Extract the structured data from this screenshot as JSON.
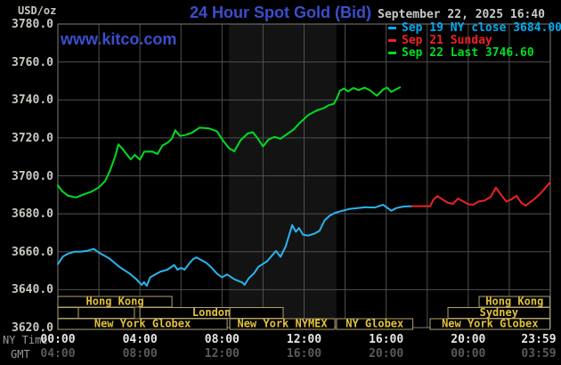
{
  "header": {
    "unit_label": "USD/oz",
    "title": "24 Hour Spot Gold (Bid)",
    "datetime": "September 22, 2025 16:40",
    "watermark": "www.kitco.com"
  },
  "legend": [
    {
      "label": "Sep 19 NY close 3684.00",
      "color": "#00aaee"
    },
    {
      "label": "Sep 21 Sunday",
      "color": "#ee2222"
    },
    {
      "label": "Sep 22 Last 3746.60",
      "color": "#00dd22"
    }
  ],
  "axes": {
    "x_ny_label": "NY Time",
    "x_gmt_label": "GMT",
    "x_ny_ticks": [
      "00:00",
      "04:00",
      "08:00",
      "12:00",
      "16:00",
      "20:00",
      "23:59"
    ],
    "x_gmt_ticks": [
      "04:00",
      "08:00",
      "12:00",
      "16:00",
      "20:00",
      "00:00",
      "03:59"
    ],
    "y_ticks": [
      "3780.0",
      "3760.0",
      "3740.0",
      "3720.0",
      "3700.0",
      "3680.0",
      "3660.0",
      "3640.0",
      "3620.0"
    ]
  },
  "chart_data": {
    "type": "line",
    "title": "24 Hour Spot Gold (Bid)",
    "y_unit": "USD/oz",
    "ylim": [
      3620,
      3780
    ],
    "y_grid_step": 20,
    "xlim_hours": [
      0,
      24
    ],
    "x_grid_step_hours": 2,
    "x_tick_hours": [
      0,
      4,
      8,
      12,
      16,
      20,
      24
    ],
    "grid": true,
    "legend_position": "top-right",
    "nymex_band_hours": [
      8.33,
      13.58
    ],
    "series": [
      {
        "name": "Sep 22 Last 3746.60",
        "color": "#00dd22",
        "points": [
          [
            0,
            3695
          ],
          [
            0.2,
            3692
          ],
          [
            0.5,
            3689.5
          ],
          [
            0.9,
            3688.6
          ],
          [
            1.2,
            3690
          ],
          [
            1.65,
            3691.7
          ],
          [
            2.0,
            3694
          ],
          [
            2.3,
            3697.2
          ],
          [
            2.55,
            3703
          ],
          [
            2.8,
            3710.5
          ],
          [
            2.95,
            3716.6
          ],
          [
            3.2,
            3713.5
          ],
          [
            3.55,
            3708.7
          ],
          [
            3.75,
            3711
          ],
          [
            4.0,
            3708.5
          ],
          [
            4.2,
            3712.7
          ],
          [
            4.6,
            3712.8
          ],
          [
            4.85,
            3711.5
          ],
          [
            5.1,
            3716
          ],
          [
            5.35,
            3717.5
          ],
          [
            5.55,
            3719.5
          ],
          [
            5.72,
            3724
          ],
          [
            5.95,
            3721
          ],
          [
            6.2,
            3721.5
          ],
          [
            6.5,
            3722.5
          ],
          [
            6.9,
            3725.4
          ],
          [
            7.35,
            3725
          ],
          [
            7.75,
            3723.5
          ],
          [
            8.05,
            3718.5
          ],
          [
            8.35,
            3714.5
          ],
          [
            8.6,
            3712.9
          ],
          [
            8.9,
            3718.7
          ],
          [
            9.25,
            3722.3
          ],
          [
            9.5,
            3723
          ],
          [
            9.75,
            3719.5
          ],
          [
            10.0,
            3715.5
          ],
          [
            10.25,
            3719
          ],
          [
            10.55,
            3720.5
          ],
          [
            10.85,
            3719.5
          ],
          [
            11.1,
            3721.5
          ],
          [
            11.5,
            3724.5
          ],
          [
            11.75,
            3727.5
          ],
          [
            12.0,
            3730
          ],
          [
            12.2,
            3732
          ],
          [
            12.45,
            3733.5
          ],
          [
            12.7,
            3734.8
          ],
          [
            12.95,
            3735.6
          ],
          [
            13.2,
            3737.2
          ],
          [
            13.45,
            3737.9
          ],
          [
            13.6,
            3741
          ],
          [
            13.75,
            3744.9
          ],
          [
            13.95,
            3746
          ],
          [
            14.15,
            3744.5
          ],
          [
            14.4,
            3746.3
          ],
          [
            14.65,
            3745.2
          ],
          [
            14.95,
            3746.5
          ],
          [
            15.25,
            3744.8
          ],
          [
            15.55,
            3742.2
          ],
          [
            15.85,
            3745.5
          ],
          [
            16.05,
            3746.5
          ],
          [
            16.25,
            3744.2
          ],
          [
            16.5,
            3745.7
          ],
          [
            16.67,
            3746.6
          ]
        ]
      },
      {
        "name": "Sep 19 NY close 3684.00",
        "color": "#2ab4ee",
        "points": [
          [
            0,
            3653.5
          ],
          [
            0.25,
            3657.5
          ],
          [
            0.5,
            3659
          ],
          [
            0.8,
            3660
          ],
          [
            1.1,
            3660
          ],
          [
            1.45,
            3660.5
          ],
          [
            1.75,
            3661.5
          ],
          [
            2.0,
            3659.5
          ],
          [
            2.5,
            3656.5
          ],
          [
            3.0,
            3652
          ],
          [
            3.5,
            3648.5
          ],
          [
            3.83,
            3645.5
          ],
          [
            4.08,
            3642.5
          ],
          [
            4.2,
            3644
          ],
          [
            4.33,
            3642
          ],
          [
            4.5,
            3646.5
          ],
          [
            4.75,
            3648
          ],
          [
            5.0,
            3649.5
          ],
          [
            5.33,
            3650.5
          ],
          [
            5.67,
            3653
          ],
          [
            5.83,
            3650.5
          ],
          [
            6.0,
            3651.5
          ],
          [
            6.17,
            3650.5
          ],
          [
            6.42,
            3654
          ],
          [
            6.58,
            3656
          ],
          [
            6.75,
            3657
          ],
          [
            7.0,
            3655.5
          ],
          [
            7.25,
            3654
          ],
          [
            7.5,
            3651.5
          ],
          [
            7.75,
            3648.5
          ],
          [
            8.0,
            3646.5
          ],
          [
            8.25,
            3648
          ],
          [
            8.6,
            3645.5
          ],
          [
            9.0,
            3643.7
          ],
          [
            9.1,
            3642.5
          ],
          [
            9.3,
            3646
          ],
          [
            9.55,
            3648.5
          ],
          [
            9.77,
            3652
          ],
          [
            10.2,
            3655
          ],
          [
            10.63,
            3660.4
          ],
          [
            10.85,
            3657.3
          ],
          [
            11.1,
            3662.8
          ],
          [
            11.42,
            3674
          ],
          [
            11.6,
            3670.5
          ],
          [
            11.75,
            3672.5
          ],
          [
            11.95,
            3669
          ],
          [
            12.2,
            3668.5
          ],
          [
            12.5,
            3669.5
          ],
          [
            12.75,
            3671
          ],
          [
            13.0,
            3676.5
          ],
          [
            13.25,
            3679
          ],
          [
            13.5,
            3680.5
          ],
          [
            13.85,
            3681.5
          ],
          [
            14.2,
            3682.5
          ],
          [
            14.6,
            3683
          ],
          [
            15.0,
            3683.5
          ],
          [
            15.45,
            3683.3
          ],
          [
            15.85,
            3684.7
          ],
          [
            16.25,
            3681.6
          ],
          [
            16.5,
            3683
          ],
          [
            16.85,
            3683.8
          ],
          [
            17.27,
            3684
          ]
        ]
      },
      {
        "name": "Sep 21 Sunday",
        "color": "#ee2222",
        "points": [
          [
            17.27,
            3684
          ],
          [
            18.15,
            3684
          ],
          [
            18.3,
            3687.5
          ],
          [
            18.5,
            3689.3
          ],
          [
            18.75,
            3687.5
          ],
          [
            19.0,
            3685.9
          ],
          [
            19.25,
            3685.2
          ],
          [
            19.5,
            3688
          ],
          [
            19.75,
            3686.5
          ],
          [
            20.0,
            3685
          ],
          [
            20.25,
            3684.8
          ],
          [
            20.5,
            3686.5
          ],
          [
            20.8,
            3687
          ],
          [
            21.1,
            3689
          ],
          [
            21.35,
            3693.8
          ],
          [
            21.6,
            3690
          ],
          [
            21.85,
            3686.5
          ],
          [
            22.1,
            3687.5
          ],
          [
            22.35,
            3689.5
          ],
          [
            22.6,
            3685.6
          ],
          [
            22.8,
            3684.3
          ],
          [
            23.0,
            3686
          ],
          [
            23.25,
            3688
          ],
          [
            23.5,
            3690.5
          ],
          [
            23.75,
            3693.5
          ],
          [
            23.98,
            3696.5
          ]
        ]
      }
    ],
    "sessions": [
      {
        "label": "Hong Kong",
        "row": 1,
        "start_h": 0.0,
        "end_h": 5.56
      },
      {
        "label": "Hong Kong",
        "row": 1,
        "start_h": 20.53,
        "end_h": 23.98
      },
      {
        "label": "",
        "row": 2,
        "start_h": 0.0,
        "end_h": 1.0
      },
      {
        "label": "",
        "row": 2,
        "start_h": 1.0,
        "end_h": 3.73
      },
      {
        "label": "London",
        "row": 2,
        "start_h": 4.0,
        "end_h": 10.98
      },
      {
        "label": "",
        "row": 2,
        "start_h": 8.38,
        "end_h": 10.98
      },
      {
        "label": "Sydney",
        "row": 2,
        "start_h": 19.01,
        "end_h": 23.98
      },
      {
        "label": "New York Globex",
        "row": 3,
        "start_h": 0.0,
        "end_h": 8.25
      },
      {
        "label": "New York NYMEX",
        "row": 3,
        "start_h": 8.38,
        "end_h": 13.5
      },
      {
        "label": "NY Globex",
        "row": 3,
        "start_h": 13.58,
        "end_h": 17.3
      },
      {
        "label": "New York Globex",
        "row": 3,
        "start_h": 18.14,
        "end_h": 23.98
      }
    ]
  },
  "colors": {
    "background": "#000000",
    "grid": "#4f4f4f",
    "border": "#7d7d7d",
    "nymex_band": "#131313",
    "session_box": "#b0a070",
    "session_text": "#e2c23c",
    "title_blue": "#3b4ecd"
  }
}
